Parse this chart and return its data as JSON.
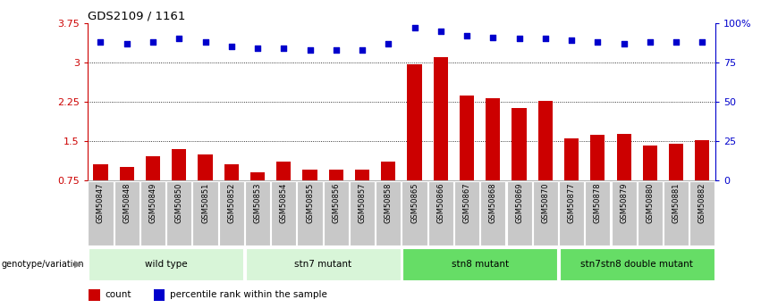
{
  "title": "GDS2109 / 1161",
  "samples": [
    "GSM50847",
    "GSM50848",
    "GSM50849",
    "GSM50850",
    "GSM50851",
    "GSM50852",
    "GSM50853",
    "GSM50854",
    "GSM50855",
    "GSM50856",
    "GSM50857",
    "GSM50858",
    "GSM50865",
    "GSM50866",
    "GSM50867",
    "GSM50868",
    "GSM50869",
    "GSM50870",
    "GSM50877",
    "GSM50878",
    "GSM50879",
    "GSM50880",
    "GSM50881",
    "GSM50882"
  ],
  "bar_values": [
    1.05,
    1.0,
    1.2,
    1.35,
    1.25,
    1.05,
    0.9,
    1.1,
    0.95,
    0.95,
    0.95,
    1.1,
    2.97,
    3.1,
    2.37,
    2.32,
    2.13,
    2.27,
    1.55,
    1.62,
    1.63,
    1.42,
    1.44,
    1.52
  ],
  "dot_values": [
    88,
    87,
    88,
    90,
    88,
    85,
    84,
    84,
    83,
    83,
    83,
    87,
    97,
    95,
    92,
    91,
    90,
    90,
    89,
    88,
    87,
    88,
    88,
    88
  ],
  "groups": [
    {
      "label": "wild type",
      "count": 6,
      "color": "#d8f5d8"
    },
    {
      "label": "stn7 mutant",
      "count": 6,
      "color": "#d8f5d8"
    },
    {
      "label": "stn8 mutant",
      "count": 6,
      "color": "#66dd66"
    },
    {
      "label": "stn7stn8 double mutant",
      "count": 6,
      "color": "#66dd66"
    }
  ],
  "bar_color": "#cc0000",
  "dot_color": "#0000cc",
  "ylim_left": [
    0.75,
    3.75
  ],
  "ylim_right": [
    0,
    100
  ],
  "yticks_left": [
    0.75,
    1.5,
    2.25,
    3.0,
    3.75
  ],
  "ytick_labels_left": [
    "0.75",
    "1.5",
    "2.25",
    "3",
    "3.75"
  ],
  "yticks_right": [
    0,
    25,
    50,
    75,
    100
  ],
  "ytick_labels_right": [
    "0",
    "25",
    "50",
    "75",
    "100%"
  ],
  "gridlines": [
    3.0,
    2.25,
    1.5
  ],
  "plot_bg": "#ffffff",
  "xtick_bg": "#c8c8c8",
  "legend_count_label": "count",
  "legend_pct_label": "percentile rank within the sample",
  "genotype_label": "genotype/variation"
}
